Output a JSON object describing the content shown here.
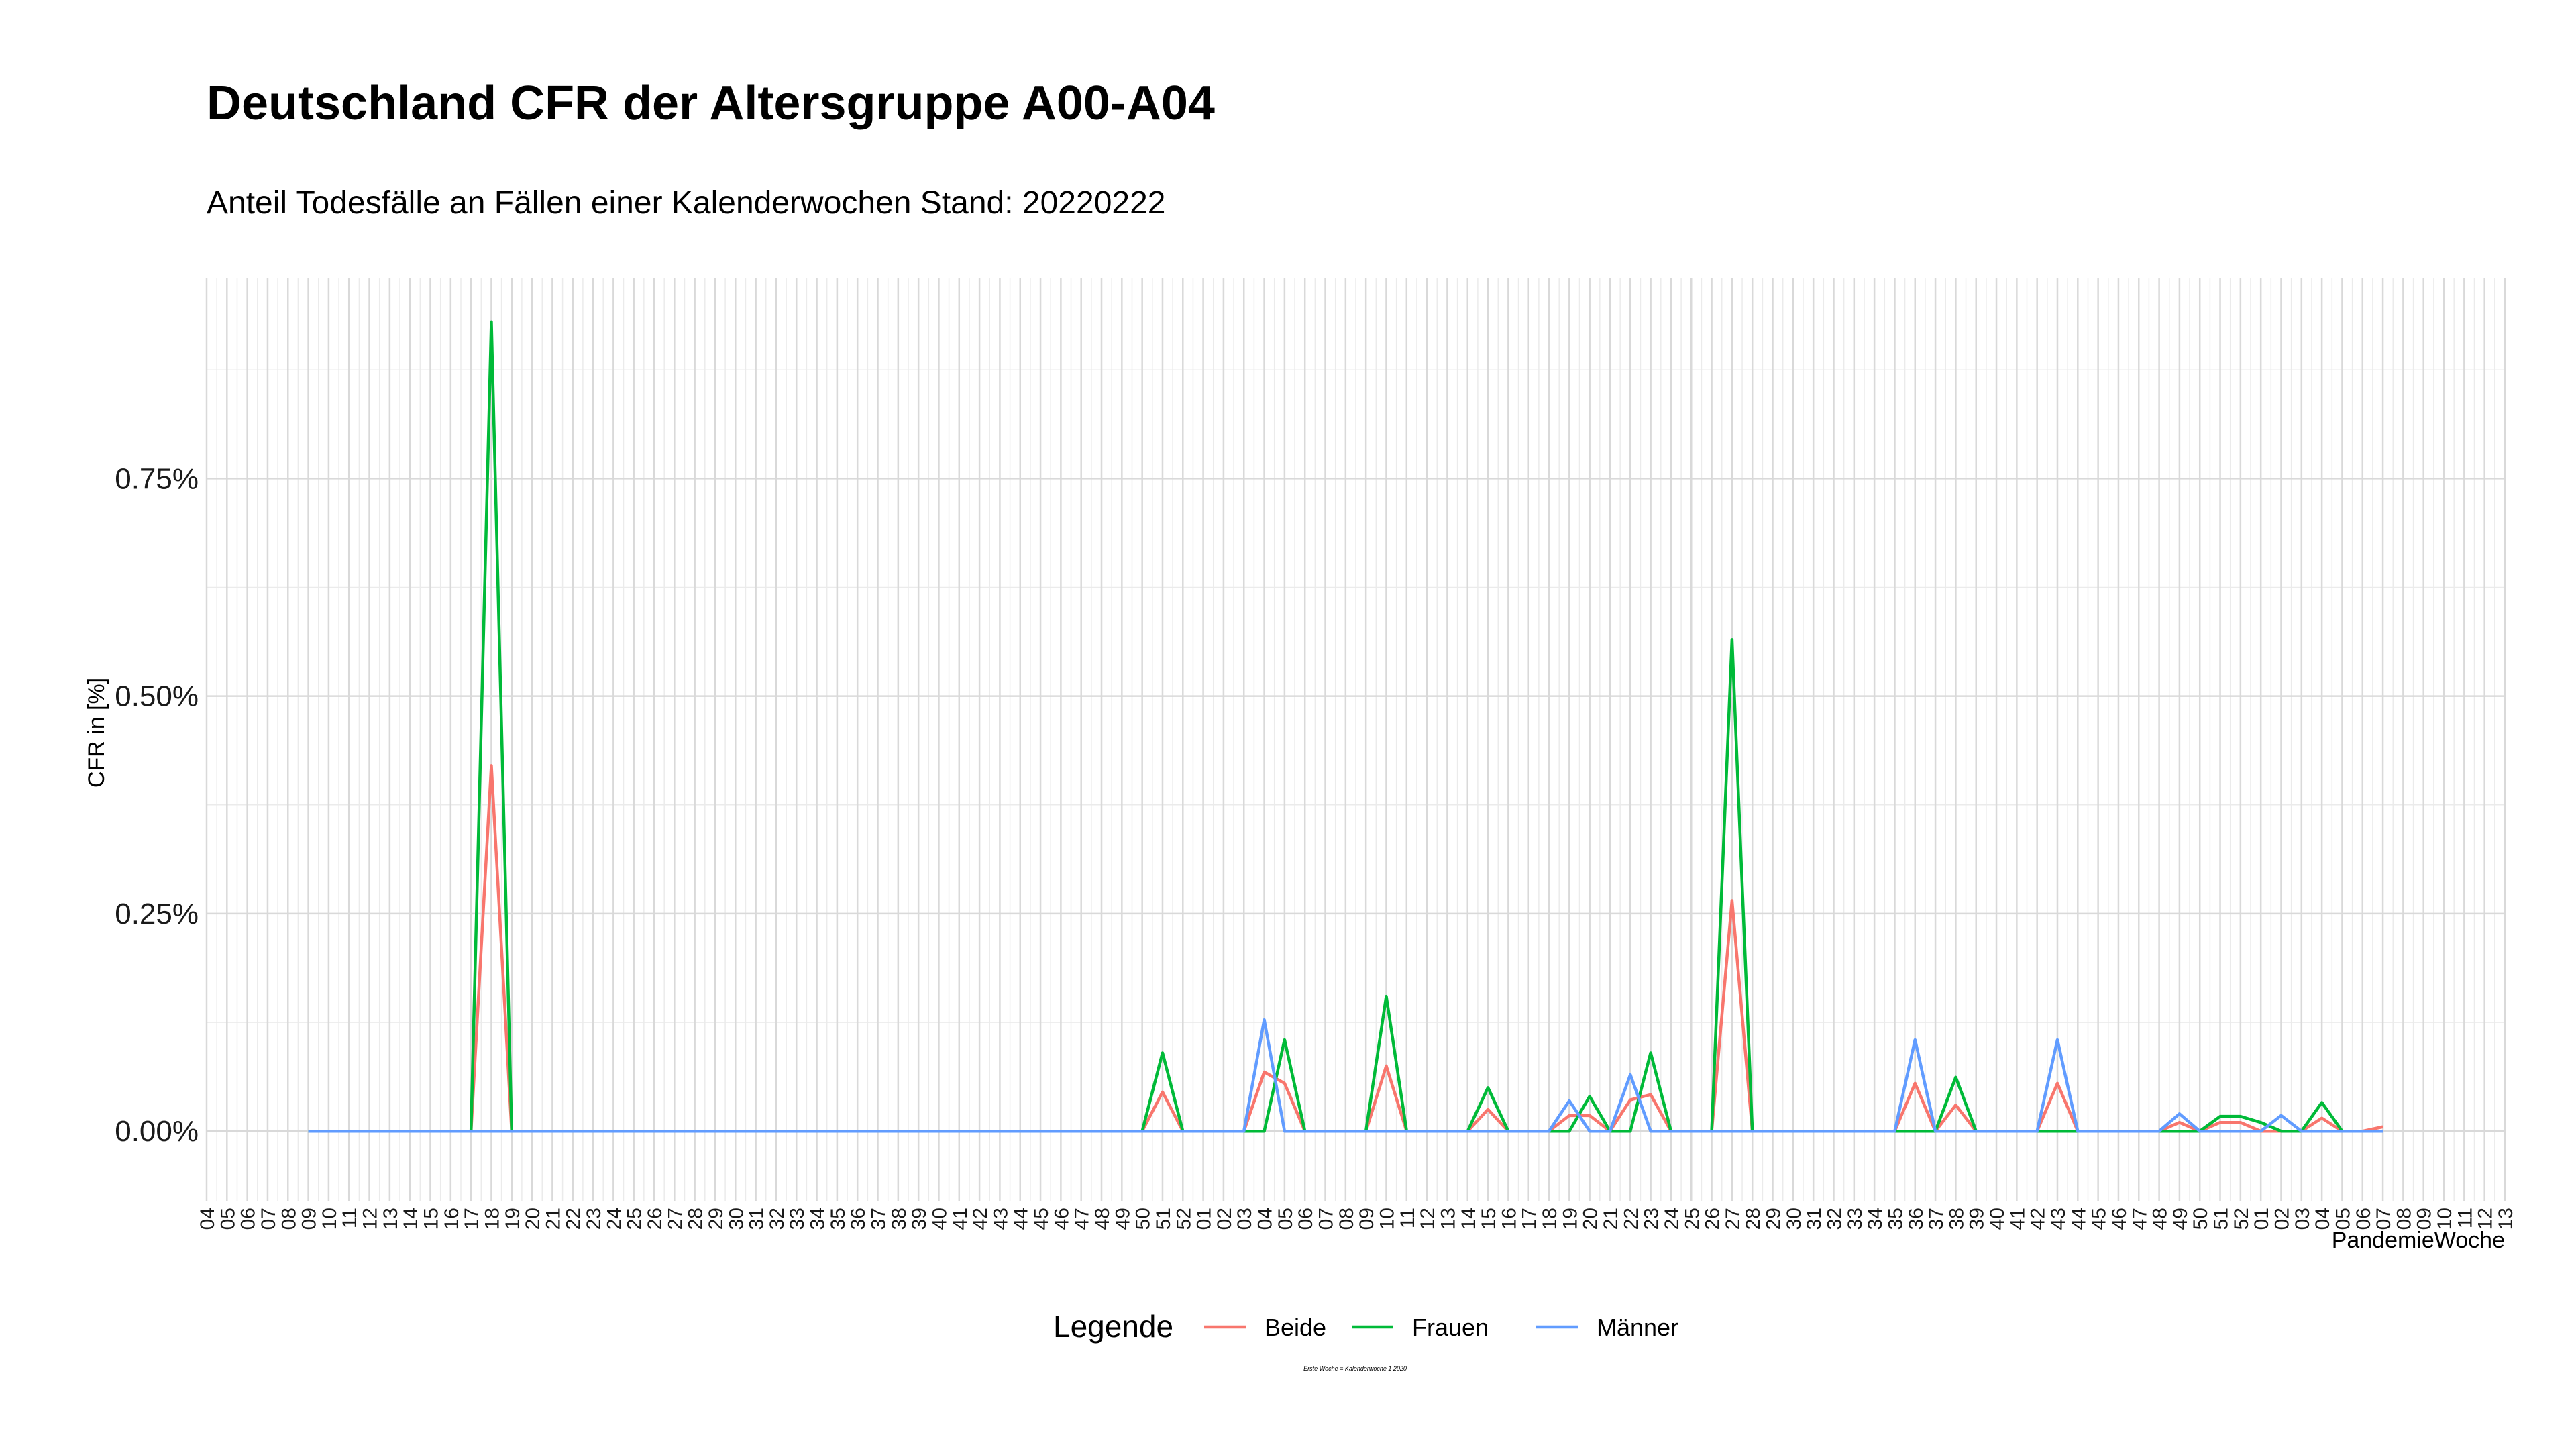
{
  "chart_data": {
    "type": "line",
    "title": "Deutschland CFR der Altersgruppe A00-A04",
    "subtitle": "Anteil Todesfälle an Fällen einer Kalenderwochen Stand: 20220222",
    "xlabel": "PandemieWoche",
    "ylabel": "CFR in [%]",
    "caption": "Erste Woche = Kalenderwoche 1 2020",
    "legend_title": "Legende",
    "legend_position": "bottom",
    "grid": true,
    "ylim": [
      -0.0008,
      0.0098
    ],
    "y_ticks": [
      {
        "value": 0,
        "label": "0.00%"
      },
      {
        "value": 0.0025,
        "label": "0.25%"
      },
      {
        "value": 0.005,
        "label": "0.50%"
      },
      {
        "value": 0.0075,
        "label": "0.75%"
      }
    ],
    "x_labels": [
      "04",
      "05",
      "06",
      "07",
      "08",
      "09",
      "10",
      "11",
      "12",
      "13",
      "14",
      "15",
      "16",
      "17",
      "18",
      "19",
      "20",
      "21",
      "22",
      "23",
      "24",
      "25",
      "26",
      "27",
      "28",
      "29",
      "30",
      "31",
      "32",
      "33",
      "34",
      "35",
      "36",
      "37",
      "38",
      "39",
      "40",
      "41",
      "42",
      "43",
      "44",
      "45",
      "46",
      "47",
      "48",
      "49",
      "50",
      "51",
      "52",
      "01",
      "02",
      "03",
      "04",
      "05",
      "06",
      "07",
      "08",
      "09",
      "10",
      "11",
      "12",
      "13",
      "14",
      "15",
      "16",
      "17",
      "18",
      "19",
      "20",
      "21",
      "22",
      "23",
      "24",
      "25",
      "26",
      "27",
      "28",
      "29",
      "30",
      "31",
      "32",
      "33",
      "34",
      "35",
      "36",
      "37",
      "38",
      "39",
      "40",
      "41",
      "42",
      "43",
      "44",
      "45",
      "46",
      "47",
      "48",
      "49",
      "50",
      "51",
      "52",
      "01",
      "02",
      "03",
      "04",
      "05",
      "06",
      "07",
      "08",
      "09",
      "10",
      "11",
      "12",
      "13"
    ],
    "x_start": 5,
    "x_end": 107,
    "series": [
      {
        "name": "Beide",
        "color": "#F8766D",
        "points": [
          [
            14,
            0.0042
          ],
          [
            47,
            0.00045
          ],
          [
            52,
            0.00068
          ],
          [
            53,
            0.00055
          ],
          [
            58,
            0.00075
          ],
          [
            63,
            0.00025
          ],
          [
            67,
            0.00018
          ],
          [
            68,
            0.00018
          ],
          [
            70,
            0.00036
          ],
          [
            71,
            0.00042
          ],
          [
            75,
            0.00265
          ],
          [
            84,
            0.00055
          ],
          [
            86,
            0.0003
          ],
          [
            91,
            0.00055
          ],
          [
            97,
            0.0001
          ],
          [
            99,
            0.0001
          ],
          [
            100,
            0.0001
          ],
          [
            104,
            0.00015
          ],
          [
            107,
            5e-05
          ],
          [
            108,
            5e-05
          ],
          [
            110,
            2e-05
          ],
          [
            112,
            2e-05
          ]
        ]
      },
      {
        "name": "Frauen",
        "color": "#00BA38",
        "points": [
          [
            14,
            0.0093
          ],
          [
            47,
            0.0009
          ],
          [
            53,
            0.00105
          ],
          [
            58,
            0.00155
          ],
          [
            63,
            0.0005
          ],
          [
            68,
            0.0004
          ],
          [
            71,
            0.0009
          ],
          [
            75,
            0.00565
          ],
          [
            86,
            0.00062
          ],
          [
            99,
            0.00017
          ],
          [
            100,
            0.00017
          ],
          [
            101,
            0.0001
          ],
          [
            104,
            0.00033
          ],
          [
            108,
            5e-05
          ],
          [
            109,
            3e-05
          ],
          [
            111,
            2e-05
          ],
          [
            112,
            3e-05
          ]
        ]
      },
      {
        "name": "Männer",
        "color": "#619CFF",
        "points": [
          [
            52,
            0.00128
          ],
          [
            67,
            0.00035
          ],
          [
            70,
            0.00065
          ],
          [
            84,
            0.00105
          ],
          [
            91,
            0.00105
          ],
          [
            97,
            0.0002
          ],
          [
            102,
            0.00018
          ],
          [
            108,
            3e-05
          ],
          [
            110,
            3e-05
          ],
          [
            112,
            3e-05
          ]
        ]
      }
    ]
  }
}
